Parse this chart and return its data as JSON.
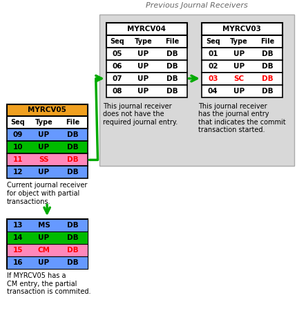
{
  "title": "Previous Journal Receivers",
  "bg_color": "#f0f0f0",
  "fig_bg": "#ffffff",
  "myrcv05": {
    "title": "MYRCV05",
    "title_bg": "#f0a020",
    "header": [
      "Seq",
      "Type",
      "File"
    ],
    "rows": [
      {
        "seq": "09",
        "type": "UP",
        "file": "DB",
        "bg": "#6699ff",
        "color": "black"
      },
      {
        "seq": "10",
        "type": "UP",
        "file": "DB",
        "bg": "#00bb00",
        "color": "black"
      },
      {
        "seq": "11",
        "type": "SS",
        "file": "DB",
        "bg": "#ff88bb",
        "color": "red"
      },
      {
        "seq": "12",
        "type": "UP",
        "file": "DB",
        "bg": "#6699ff",
        "color": "black"
      }
    ],
    "label": "Current journal receiver\nfor object with partial\ntransactions."
  },
  "myrcv05b": {
    "rows": [
      {
        "seq": "13",
        "type": "MS",
        "file": "DB",
        "bg": "#6699ff",
        "color": "black"
      },
      {
        "seq": "14",
        "type": "UP",
        "file": "DB",
        "bg": "#00bb00",
        "color": "black"
      },
      {
        "seq": "15",
        "type": "CM",
        "file": "DB",
        "bg": "#ff88bb",
        "color": "red"
      },
      {
        "seq": "16",
        "type": "UP",
        "file": "DB",
        "bg": "#6699ff",
        "color": "black"
      }
    ],
    "label": "If MYRCV05 has a\nCM entry, the partial\ntransaction is commited."
  },
  "myrcv04": {
    "title": "MYRCV04",
    "header": [
      "Seq",
      "Type",
      "File"
    ],
    "rows": [
      {
        "seq": "05",
        "type": "UP",
        "file": "DB",
        "bg": "#ffffff",
        "color": "black"
      },
      {
        "seq": "06",
        "type": "UP",
        "file": "DB",
        "bg": "#ffffff",
        "color": "black"
      },
      {
        "seq": "07",
        "type": "UP",
        "file": "DB",
        "bg": "#ffffff",
        "color": "black"
      },
      {
        "seq": "08",
        "type": "UP",
        "file": "DB",
        "bg": "#ffffff",
        "color": "black"
      }
    ],
    "label": "This journal receiver\ndoes not have the\nrequired journal entry."
  },
  "myrcv03": {
    "title": "MYRCV03",
    "header": [
      "Seq",
      "Type",
      "File"
    ],
    "rows": [
      {
        "seq": "01",
        "type": "UP",
        "file": "DB",
        "bg": "#ffffff",
        "color": "black"
      },
      {
        "seq": "02",
        "type": "UP",
        "file": "DB",
        "bg": "#ffffff",
        "color": "black"
      },
      {
        "seq": "03",
        "type": "SC",
        "file": "DB",
        "bg": "#ffffff",
        "color": "red"
      },
      {
        "seq": "04",
        "type": "UP",
        "file": "DB",
        "bg": "#ffffff",
        "color": "black"
      }
    ],
    "label": "This journal receiver\nhas the journal entry\nthat indicates the commit\ntransaction started."
  }
}
